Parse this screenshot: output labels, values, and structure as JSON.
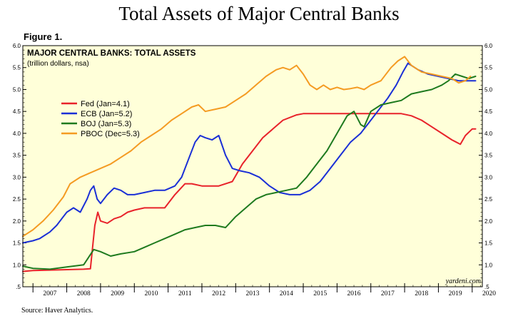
{
  "page": {
    "title": "Total Assets of Major Central Banks",
    "figure_label": "Figure 1.",
    "source": "Source: Haver Analytics."
  },
  "chart_data": {
    "type": "line",
    "title": "MAJOR CENTRAL BANKS: TOTAL ASSETS",
    "subtitle": "(trillion dollars, nsa)",
    "watermark": "yardeni.com",
    "xlabel": "",
    "ylabel": "",
    "xlim": [
      2006.7,
      2020.3
    ],
    "ylim": [
      0.5,
      6.0
    ],
    "y_ticks": [
      0.5,
      1.0,
      1.5,
      2.0,
      2.5,
      3.0,
      3.5,
      4.0,
      4.5,
      5.0,
      5.5,
      6.0
    ],
    "y_tick_labels": [
      ".5",
      "1.0",
      "1.5",
      "2.0",
      "2.5",
      "3.0",
      "3.5",
      "4.0",
      "4.5",
      "5.0",
      "5.5",
      "6.0"
    ],
    "x_year_labels": [
      "2007",
      "2008",
      "2009",
      "2010",
      "2011",
      "2012",
      "2013",
      "2014",
      "2015",
      "2016",
      "2017",
      "2018",
      "2019",
      "2020"
    ],
    "background": "#ffffd9",
    "legend_position": "upper-left",
    "series": [
      {
        "name": "Fed (Jan=4.1)",
        "color": "#e8222a",
        "x": [
          2006.7,
          2007.0,
          2007.5,
          2008.0,
          2008.5,
          2008.7,
          2008.83,
          2008.92,
          2009.0,
          2009.2,
          2009.4,
          2009.6,
          2009.8,
          2010.0,
          2010.3,
          2010.6,
          2010.9,
          2011.2,
          2011.5,
          2011.7,
          2012.0,
          2012.5,
          2012.9,
          2013.2,
          2013.5,
          2013.8,
          2014.1,
          2014.4,
          2014.8,
          2015.0,
          2015.5,
          2016.0,
          2016.5,
          2017.0,
          2017.5,
          2017.9,
          2018.2,
          2018.5,
          2018.8,
          2019.1,
          2019.4,
          2019.65,
          2019.8,
          2020.0,
          2020.1
        ],
        "y": [
          0.85,
          0.87,
          0.88,
          0.89,
          0.9,
          0.91,
          1.9,
          2.2,
          2.0,
          1.95,
          2.05,
          2.1,
          2.2,
          2.25,
          2.3,
          2.3,
          2.3,
          2.6,
          2.85,
          2.85,
          2.8,
          2.8,
          2.9,
          3.3,
          3.6,
          3.9,
          4.1,
          4.3,
          4.42,
          4.45,
          4.45,
          4.45,
          4.45,
          4.45,
          4.45,
          4.45,
          4.4,
          4.3,
          4.15,
          4.0,
          3.85,
          3.75,
          3.95,
          4.1,
          4.1
        ]
      },
      {
        "name": "ECB (Jan=5.2)",
        "color": "#1a2fd6",
        "x": [
          2006.7,
          2007.0,
          2007.2,
          2007.5,
          2007.7,
          2007.9,
          2008.0,
          2008.2,
          2008.4,
          2008.6,
          2008.7,
          2008.8,
          2008.9,
          2009.0,
          2009.2,
          2009.4,
          2009.6,
          2009.8,
          2010.0,
          2010.3,
          2010.6,
          2010.9,
          2011.2,
          2011.4,
          2011.6,
          2011.8,
          2011.95,
          2012.1,
          2012.3,
          2012.5,
          2012.7,
          2012.9,
          2013.1,
          2013.4,
          2013.7,
          2014.0,
          2014.3,
          2014.6,
          2014.9,
          2015.2,
          2015.5,
          2015.8,
          2016.1,
          2016.4,
          2016.7,
          2016.9,
          2017.2,
          2017.5,
          2017.75,
          2017.95,
          2018.1,
          2018.4,
          2018.7,
          2019.0,
          2019.3,
          2019.6,
          2019.8,
          2020.0,
          2020.1
        ],
        "y": [
          1.5,
          1.55,
          1.6,
          1.75,
          1.9,
          2.1,
          2.2,
          2.3,
          2.2,
          2.5,
          2.7,
          2.8,
          2.5,
          2.4,
          2.6,
          2.75,
          2.7,
          2.6,
          2.6,
          2.65,
          2.7,
          2.7,
          2.8,
          3.0,
          3.4,
          3.8,
          3.95,
          3.9,
          3.85,
          3.95,
          3.5,
          3.2,
          3.15,
          3.1,
          3.0,
          2.8,
          2.65,
          2.6,
          2.6,
          2.7,
          2.9,
          3.2,
          3.5,
          3.8,
          4.0,
          4.2,
          4.5,
          4.8,
          5.1,
          5.4,
          5.6,
          5.45,
          5.35,
          5.3,
          5.25,
          5.2,
          5.2,
          5.2,
          5.2
        ]
      },
      {
        "name": "BOJ (Jan=5.3)",
        "color": "#1e7a1e",
        "x": [
          2006.7,
          2007.0,
          2007.5,
          2008.0,
          2008.5,
          2008.8,
          2009.0,
          2009.3,
          2009.6,
          2010.0,
          2010.3,
          2010.6,
          2010.9,
          2011.2,
          2011.5,
          2011.8,
          2012.1,
          2012.4,
          2012.7,
          2013.0,
          2013.3,
          2013.6,
          2013.9,
          2014.2,
          2014.5,
          2014.8,
          2015.1,
          2015.4,
          2015.7,
          2016.0,
          2016.3,
          2016.5,
          2016.7,
          2016.8,
          2017.0,
          2017.3,
          2017.6,
          2017.9,
          2018.2,
          2018.5,
          2018.8,
          2019.1,
          2019.3,
          2019.5,
          2019.7,
          2019.9,
          2020.1
        ],
        "y": [
          0.97,
          0.92,
          0.9,
          0.95,
          1.0,
          1.35,
          1.3,
          1.2,
          1.25,
          1.3,
          1.4,
          1.5,
          1.6,
          1.7,
          1.8,
          1.85,
          1.9,
          1.9,
          1.85,
          2.1,
          2.3,
          2.5,
          2.6,
          2.65,
          2.7,
          2.75,
          3.0,
          3.3,
          3.6,
          4.0,
          4.4,
          4.5,
          4.2,
          4.15,
          4.5,
          4.65,
          4.7,
          4.75,
          4.9,
          4.95,
          5.0,
          5.1,
          5.2,
          5.35,
          5.3,
          5.25,
          5.3
        ]
      },
      {
        "name": "PBOC (Dec=5.3)",
        "color": "#f49b22",
        "x": [
          2006.7,
          2007.0,
          2007.3,
          2007.6,
          2007.9,
          2008.1,
          2008.4,
          2008.7,
          2009.0,
          2009.3,
          2009.6,
          2009.9,
          2010.2,
          2010.5,
          2010.8,
          2011.1,
          2011.4,
          2011.7,
          2011.9,
          2012.1,
          2012.4,
          2012.7,
          2013.0,
          2013.3,
          2013.6,
          2013.9,
          2014.2,
          2014.4,
          2014.6,
          2014.8,
          2015.0,
          2015.2,
          2015.4,
          2015.6,
          2015.8,
          2016.0,
          2016.2,
          2016.4,
          2016.6,
          2016.8,
          2017.0,
          2017.3,
          2017.6,
          2017.8,
          2018.0,
          2018.2,
          2018.5,
          2018.8,
          2019.1,
          2019.4,
          2019.6,
          2019.8,
          2019.95
        ],
        "y": [
          1.65,
          1.8,
          2.0,
          2.25,
          2.55,
          2.85,
          3.0,
          3.1,
          3.2,
          3.3,
          3.45,
          3.6,
          3.8,
          3.95,
          4.1,
          4.3,
          4.45,
          4.6,
          4.65,
          4.5,
          4.55,
          4.6,
          4.75,
          4.9,
          5.1,
          5.3,
          5.45,
          5.5,
          5.45,
          5.55,
          5.35,
          5.1,
          5.0,
          5.1,
          5.0,
          5.05,
          5.0,
          5.02,
          5.05,
          5.0,
          5.1,
          5.2,
          5.5,
          5.65,
          5.75,
          5.55,
          5.4,
          5.35,
          5.3,
          5.25,
          5.15,
          5.2,
          5.3
        ]
      }
    ]
  }
}
